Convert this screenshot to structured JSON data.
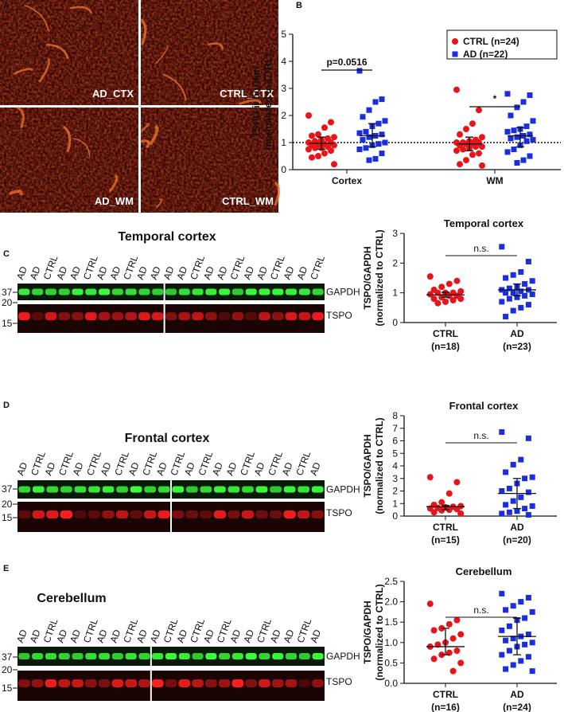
{
  "panel_labels": [
    "A",
    "B",
    "C",
    "D",
    "E"
  ],
  "micrographs": {
    "labels": [
      "AD_CTX",
      "CTRL_CTX",
      "AD_WM",
      "CTRL_WM"
    ]
  },
  "blots": [
    {
      "title": "Temporal cortex",
      "lanes": [
        "AD",
        "AD",
        "CTRL",
        "AD",
        "AD",
        "CTRL",
        "AD",
        "AD",
        "CTRL",
        "AD",
        "AD",
        "AD",
        "AD",
        "CTRL",
        "AD",
        "AD",
        "CTRL",
        "AD",
        "AD",
        "CTRL",
        "AD",
        "AD",
        "CTRL"
      ],
      "markers": [
        37,
        20,
        15
      ],
      "bands": [
        "GAPDH",
        "TSPO"
      ]
    },
    {
      "title": "Frontal cortex",
      "lanes": [
        "AD",
        "CTRL",
        "AD",
        "CTRL",
        "AD",
        "CTRL",
        "AD",
        "CTRL",
        "AD",
        "CTRL",
        "AD",
        "CTRL",
        "AD",
        "CTRL",
        "AD",
        "AD",
        "CTRL",
        "AD",
        "CTRL",
        "AD",
        "CTRL",
        "AD"
      ],
      "markers": [
        37,
        20,
        15
      ],
      "bands": [
        "GAPDH",
        "TSPO"
      ]
    },
    {
      "title": "Cerebellum",
      "lanes": [
        "AD",
        "AD",
        "CTRL",
        "AD",
        "AD",
        "CTRL",
        "AD",
        "AD",
        "CTRL",
        "AD",
        "AD",
        "CTRL",
        "AD",
        "CTRL",
        "AD",
        "CTRL",
        "AD",
        "AD",
        "CTRL",
        "AD",
        "AD",
        "CTRL",
        "AD"
      ],
      "markers": [
        37,
        20,
        15
      ],
      "bands": [
        "GAPDH",
        "TSPO"
      ]
    }
  ],
  "chart_data": [
    {
      "type": "dot",
      "ylabel": [
        "TSPO-ir burden",
        "(normalized to CTRL)"
      ],
      "categories": [
        "Cortex",
        "WM"
      ],
      "ylim": [
        0,
        5
      ],
      "yticks": [
        0,
        1,
        2,
        3,
        4,
        5
      ],
      "reference_line": 1,
      "legend": "upper right",
      "series": [
        {
          "name": "CTRL (n=24)",
          "color": "#e8141a",
          "marker": "circle",
          "values": [
            [
              2.0,
              1.75,
              1.55,
              1.3,
              1.25,
              1.2,
              1.15,
              1.1,
              1.05,
              1.0,
              1.0,
              0.95,
              0.95,
              0.9,
              0.9,
              0.85,
              0.8,
              0.8,
              0.75,
              0.7,
              0.6,
              0.5,
              0.45,
              0.2
            ],
            [
              2.95,
              2.2,
              1.7,
              1.5,
              1.3,
              1.2,
              1.1,
              1.05,
              1.0,
              1.0,
              1.0,
              0.95,
              0.95,
              0.9,
              0.85,
              0.85,
              0.8,
              0.75,
              0.7,
              0.6,
              0.55,
              0.35,
              0.2,
              0.15
            ]
          ],
          "center": [
            0.97,
            0.95
          ],
          "low": [
            0.75,
            0.7
          ],
          "high": [
            1.2,
            1.2
          ]
        },
        {
          "name": "AD (n=22)",
          "color": "#1a2ee0",
          "marker": "square",
          "values": [
            [
              3.65,
              2.6,
              2.5,
              2.2,
              1.95,
              1.8,
              1.7,
              1.6,
              1.4,
              1.35,
              1.3,
              1.25,
              1.2,
              1.1,
              1.0,
              0.95,
              0.9,
              0.8,
              0.75,
              0.6,
              0.4,
              0.35
            ],
            [
              2.8,
              2.75,
              2.5,
              2.3,
              2.0,
              1.8,
              1.6,
              1.5,
              1.45,
              1.4,
              1.3,
              1.25,
              1.2,
              1.15,
              1.1,
              1.05,
              0.9,
              0.75,
              0.65,
              0.5,
              0.35,
              0.25
            ]
          ],
          "center": [
            1.25,
            1.25
          ],
          "low": [
            0.85,
            0.85
          ],
          "high": [
            1.7,
            1.55
          ]
        }
      ],
      "annotations": [
        "p=0.0516",
        "*"
      ]
    },
    {
      "type": "dot",
      "title": "Temporal cortex",
      "ylabel": [
        "TSPO/GAPDH",
        "(normalized to CTRL)"
      ],
      "categories": [
        "CTRL",
        "AD"
      ],
      "category_notes": [
        "(n=18)",
        "(n=23)"
      ],
      "ylim": [
        0,
        3
      ],
      "yticks": [
        0,
        1,
        2,
        3
      ],
      "groups": [
        {
          "color": "#e8141a",
          "marker": "circle",
          "values": [
            1.55,
            1.4,
            1.3,
            1.2,
            1.1,
            1.05,
            1.0,
            1.0,
            1.0,
            0.95,
            0.9,
            0.9,
            0.85,
            0.8,
            0.8,
            0.75,
            0.7,
            0.65
          ],
          "center": 0.93,
          "low": 0.85,
          "high": 1.02
        },
        {
          "color": "#1a2ee0",
          "marker": "square",
          "values": [
            2.55,
            2.05,
            1.7,
            1.6,
            1.5,
            1.4,
            1.3,
            1.2,
            1.15,
            1.1,
            1.1,
            1.05,
            1.0,
            1.0,
            0.95,
            0.9,
            0.85,
            0.8,
            0.7,
            0.6,
            0.5,
            0.4,
            0.2
          ],
          "center": 1.1,
          "low": 0.9,
          "high": 1.3
        }
      ],
      "annotations": [
        "n.s."
      ]
    },
    {
      "type": "dot",
      "title": "Frontal cortex",
      "ylabel": [
        "TSPO/GAPDH",
        "(normalized to CTRL)"
      ],
      "categories": [
        "CTRL",
        "AD"
      ],
      "category_notes": [
        "(n=15)",
        "(n=20)"
      ],
      "ylim": [
        0,
        8
      ],
      "yticks": [
        0,
        1,
        2,
        3,
        4,
        5,
        6,
        7,
        8
      ],
      "groups": [
        {
          "color": "#e8141a",
          "marker": "circle",
          "values": [
            3.1,
            2.7,
            1.8,
            1.1,
            0.9,
            0.8,
            0.75,
            0.7,
            0.65,
            0.6,
            0.55,
            0.5,
            0.45,
            0.3,
            0.2
          ],
          "center": 0.75,
          "low": 0.5,
          "high": 0.85
        },
        {
          "color": "#1a2ee0",
          "marker": "square",
          "values": [
            6.7,
            6.2,
            4.5,
            4.1,
            3.5,
            3.1,
            3.0,
            2.6,
            2.2,
            2.0,
            1.9,
            1.5,
            1.2,
            0.9,
            0.8,
            0.6,
            0.4,
            0.3,
            0.2,
            0.1
          ],
          "center": 1.8,
          "low": 0.6,
          "high": 3.0
        }
      ],
      "annotations": [
        "n.s."
      ]
    },
    {
      "type": "dot",
      "title": "Cerebellum",
      "ylabel": [
        "TSPO/GAPDH",
        "(normalized to CTRL)"
      ],
      "categories": [
        "CTRL",
        "AD"
      ],
      "category_notes": [
        "(n=16)",
        "(n=24)"
      ],
      "ylim": [
        0,
        2.5
      ],
      "yticks": [
        {
          "value": 0,
          "label": "0.0"
        },
        0.5,
        {
          "value": 1,
          "label": "1.0"
        },
        1.5,
        {
          "value": 2,
          "label": "2.0"
        },
        2.5
      ],
      "groups": [
        {
          "color": "#e8141a",
          "marker": "circle",
          "values": [
            1.95,
            1.55,
            1.45,
            1.35,
            1.3,
            1.2,
            1.1,
            1.0,
            0.95,
            0.9,
            0.8,
            0.75,
            0.7,
            0.6,
            0.5,
            0.3
          ],
          "center": 0.9,
          "low": 0.7,
          "high": 1.35
        },
        {
          "color": "#1a2ee0",
          "marker": "square",
          "values": [
            2.2,
            2.1,
            2.0,
            1.9,
            1.8,
            1.75,
            1.6,
            1.55,
            1.4,
            1.3,
            1.2,
            1.15,
            1.1,
            1.05,
            1.0,
            0.95,
            0.9,
            0.8,
            0.7,
            0.65,
            0.55,
            0.45,
            0.35,
            0.3
          ],
          "center": 1.15,
          "low": 0.7,
          "high": 1.6
        }
      ],
      "annotations": [
        "n.s."
      ]
    }
  ]
}
